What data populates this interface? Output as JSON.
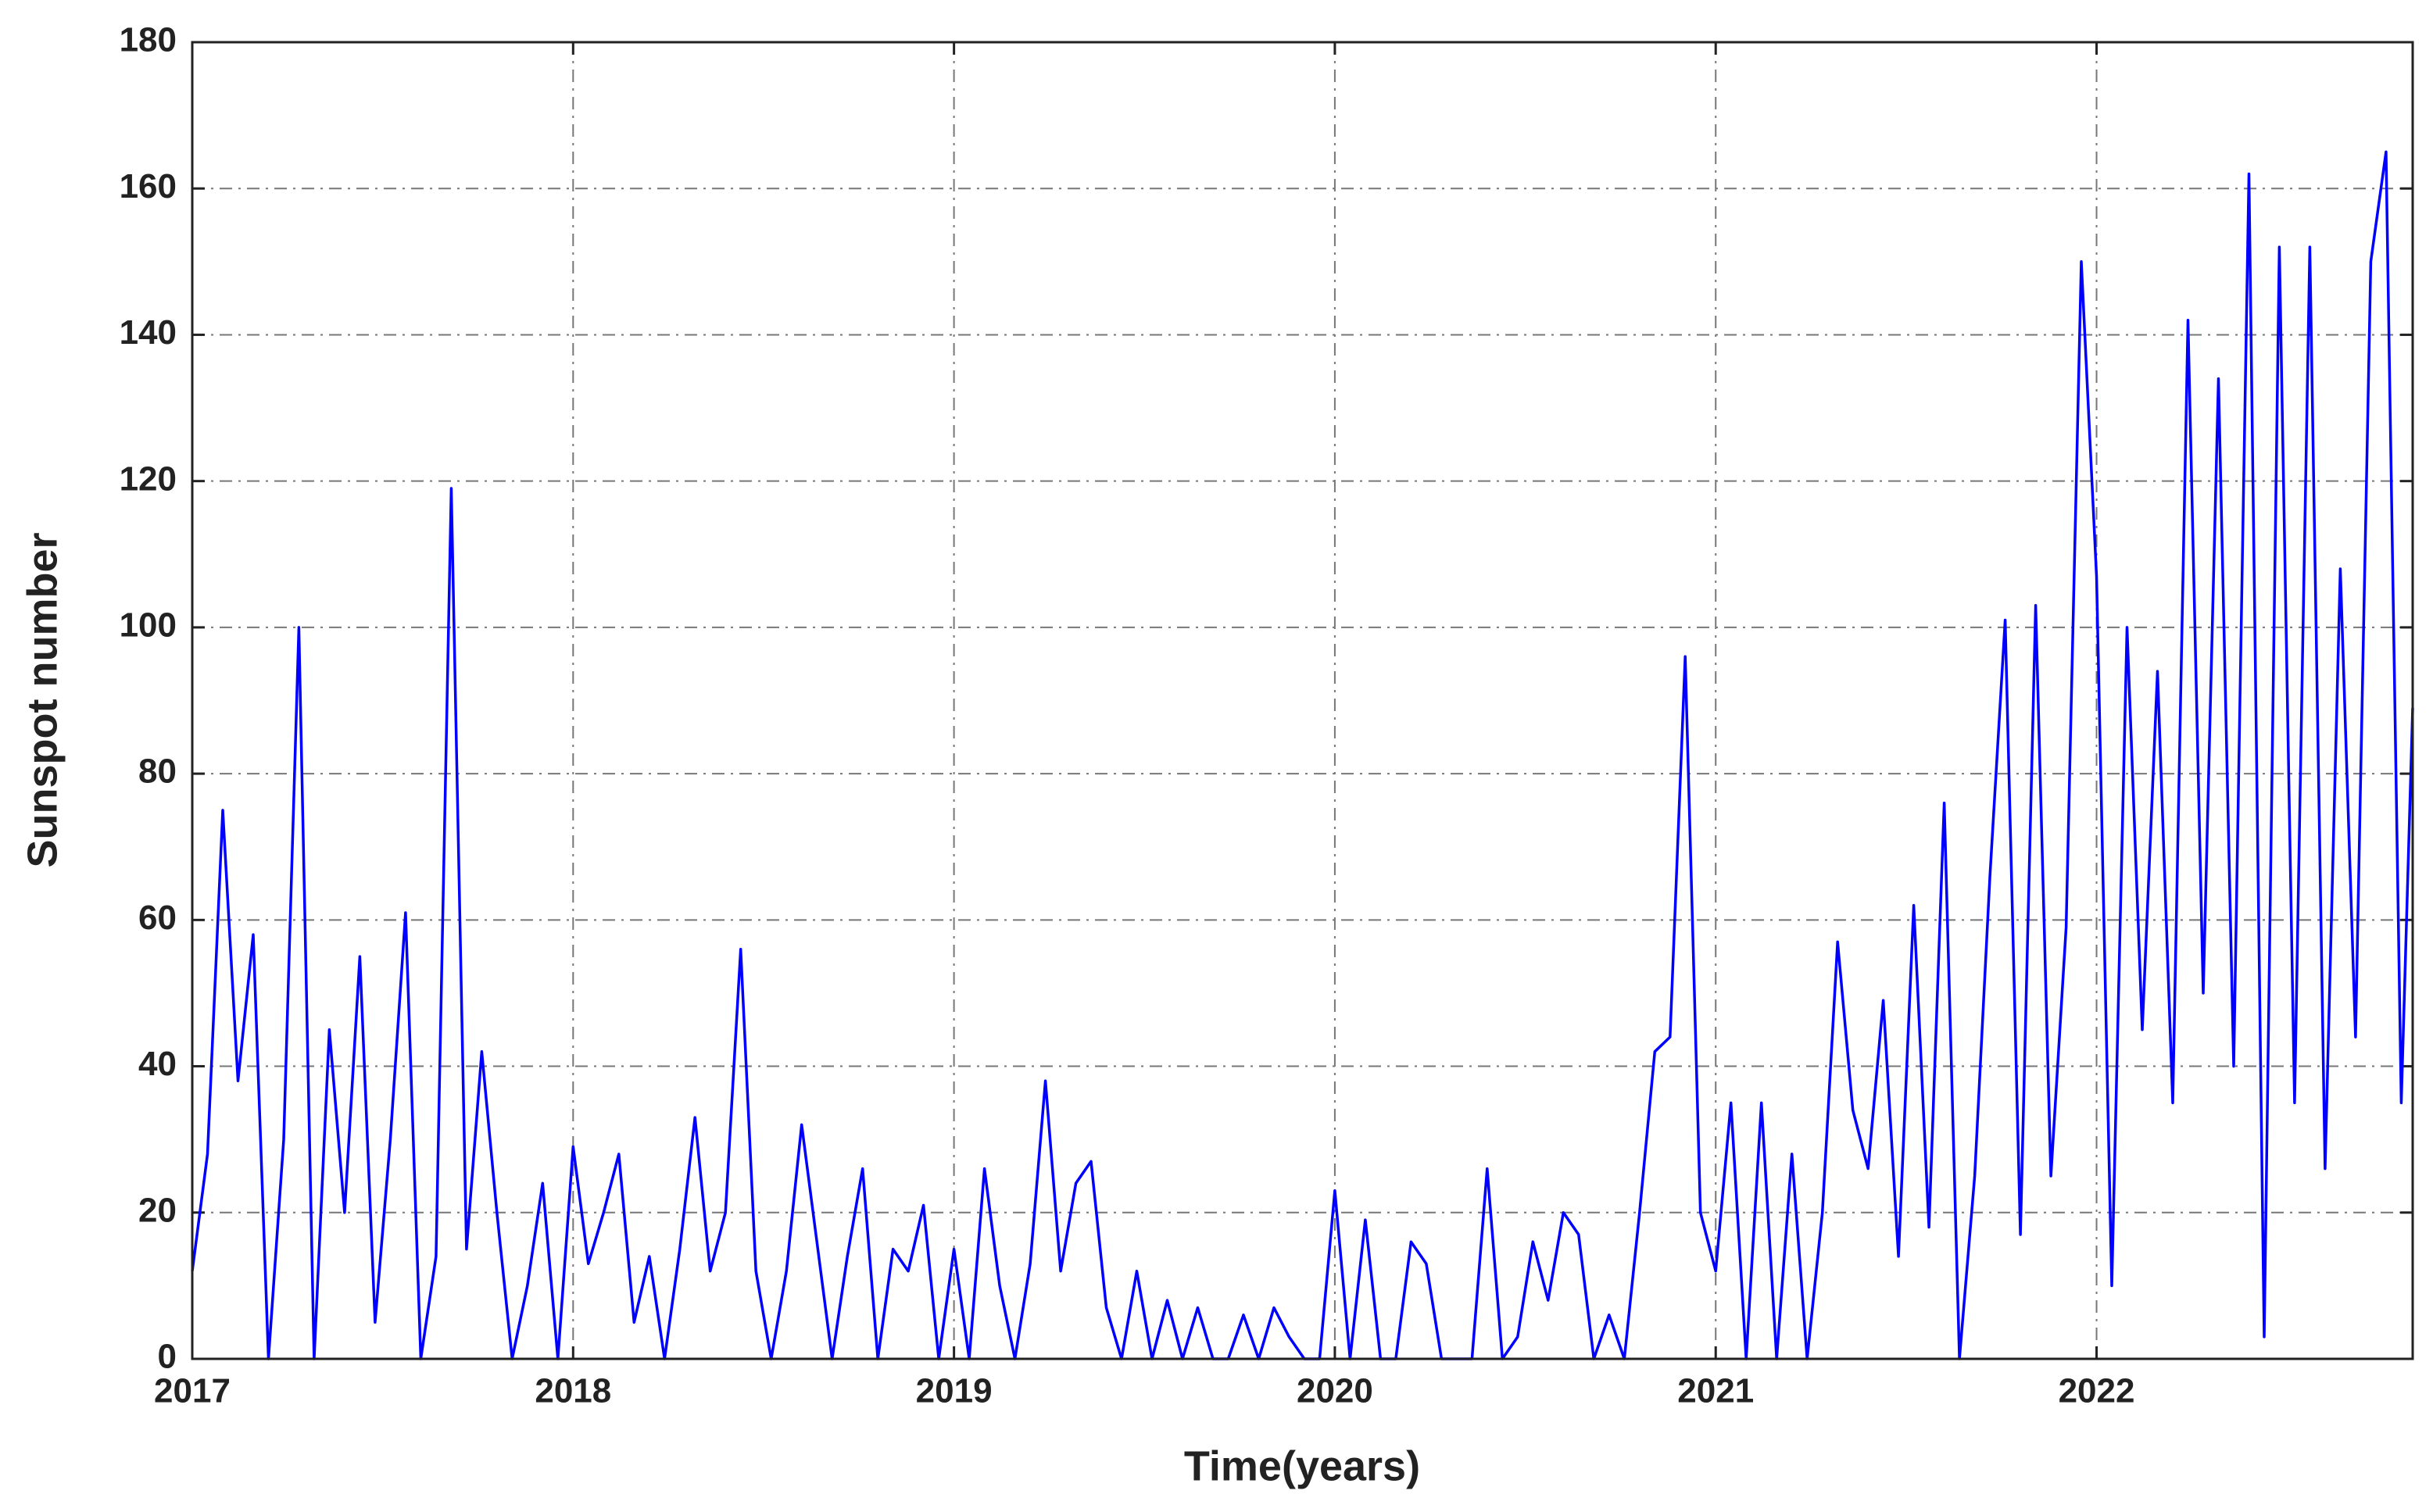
{
  "chart_data": {
    "type": "line",
    "xlabel": "Time(years)",
    "ylabel": "Sunspot number",
    "color": "#0000ff",
    "xlim": [
      2017,
      2022.83
    ],
    "xticks": [
      2017,
      2018,
      2019,
      2020,
      2021,
      2022
    ],
    "ylim": [
      0,
      180
    ],
    "yticks": [
      0,
      20,
      40,
      60,
      80,
      100,
      120,
      140,
      160,
      180
    ],
    "grid": true,
    "x": [
      2017,
      2017.04,
      2017.08,
      2017.12,
      2017.16,
      2017.2,
      2017.24,
      2017.28,
      2017.32,
      2017.36,
      2017.4,
      2017.44,
      2017.48,
      2017.52,
      2017.56,
      2017.6,
      2017.64,
      2017.68,
      2017.72,
      2017.76,
      2017.8,
      2017.84,
      2017.88,
      2017.92,
      2017.96,
      2018,
      2018.04,
      2018.08,
      2018.12,
      2018.16,
      2018.2,
      2018.24,
      2018.28,
      2018.32,
      2018.36,
      2018.4,
      2018.44,
      2018.48,
      2018.52,
      2018.56,
      2018.6,
      2018.64,
      2018.68,
      2018.72,
      2018.76,
      2018.8,
      2018.84,
      2018.88,
      2018.92,
      2018.96,
      2019,
      2019.04,
      2019.08,
      2019.12,
      2019.16,
      2019.2,
      2019.24,
      2019.28,
      2019.32,
      2019.36,
      2019.4,
      2019.44,
      2019.48,
      2019.52,
      2019.56,
      2019.6,
      2019.64,
      2019.68,
      2019.72,
      2019.76,
      2019.8,
      2019.84,
      2019.88,
      2019.92,
      2019.96,
      2020,
      2020.04,
      2020.08,
      2020.12,
      2020.16,
      2020.2,
      2020.24,
      2020.28,
      2020.32,
      2020.36,
      2020.4,
      2020.44,
      2020.48,
      2020.52,
      2020.56,
      2020.6,
      2020.64,
      2020.68,
      2020.72,
      2020.76,
      2020.8,
      2020.84,
      2020.88,
      2020.92,
      2020.96,
      2021,
      2021.04,
      2021.08,
      2021.12,
      2021.16,
      2021.2,
      2021.24,
      2021.28,
      2021.32,
      2021.36,
      2021.4,
      2021.44,
      2021.48,
      2021.52,
      2021.56,
      2021.6,
      2021.64,
      2021.68,
      2021.72,
      2021.76,
      2021.8,
      2021.84,
      2021.88,
      2021.92,
      2021.96,
      2022,
      2022.04,
      2022.08,
      2022.12,
      2022.16,
      2022.2,
      2022.24,
      2022.28,
      2022.32,
      2022.36,
      2022.4,
      2022.44,
      2022.48,
      2022.52,
      2022.56,
      2022.6,
      2022.64,
      2022.68,
      2022.72,
      2022.76,
      2022.8,
      2022.83
    ],
    "values": [
      12,
      28,
      75,
      38,
      58,
      0,
      30,
      100,
      0,
      45,
      20,
      55,
      5,
      30,
      61,
      0,
      14,
      119,
      15,
      42,
      20,
      0,
      10,
      24,
      0,
      29,
      13,
      20,
      28,
      5,
      14,
      0,
      15,
      33,
      12,
      20,
      56,
      12,
      0,
      12,
      32,
      16,
      0,
      14,
      26,
      0,
      15,
      12,
      21,
      0,
      15,
      0,
      26,
      10,
      0,
      13,
      38,
      12,
      24,
      27,
      7,
      0,
      12,
      0,
      8,
      0,
      7,
      0,
      0,
      6,
      0,
      7,
      3,
      0,
      0,
      23,
      0,
      19,
      0,
      0,
      16,
      13,
      0,
      0,
      0,
      26,
      0,
      3,
      16,
      8,
      20,
      17,
      0,
      6,
      0,
      20,
      42,
      44,
      96,
      20,
      12,
      35,
      0,
      35,
      0,
      28,
      0,
      20,
      57,
      34,
      26,
      49,
      14,
      62,
      18,
      76,
      0,
      25,
      66,
      101,
      17,
      103,
      25,
      59,
      150,
      107,
      10,
      100,
      45,
      94,
      35,
      142,
      50,
      134,
      40,
      162,
      3,
      152,
      35,
      152,
      26,
      108,
      44,
      150,
      165,
      35,
      89
    ]
  }
}
